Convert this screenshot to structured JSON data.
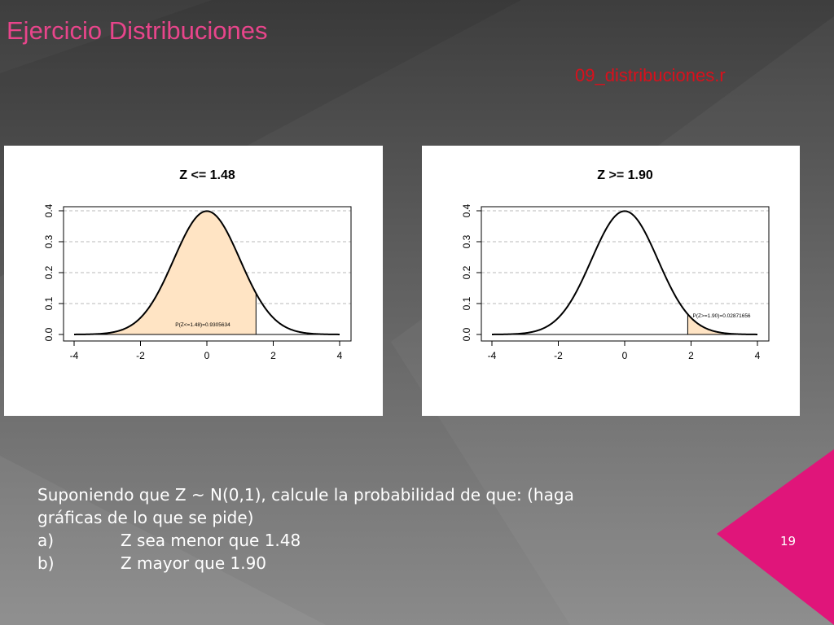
{
  "slide": {
    "title": "Ejercicio Distribuciones",
    "file_link": "09_distribuciones.r",
    "page_number": "19",
    "colors": {
      "title": "#e8458b",
      "file_link": "#d9101c",
      "accent_triangle": "#e0157a",
      "fill": "#ffe4c4"
    },
    "text": {
      "line1": "Suponiendo que Z ~ N(0,1), calcule la probabilidad de que: (haga",
      "line2": "gráficas de lo que se pide)",
      "item_a_label": "a)",
      "item_a_text": "Z sea menor que 1.48",
      "item_b_label": "b)",
      "item_b_text": "Z mayor que 1.90"
    }
  },
  "chart_data": [
    {
      "type": "area",
      "title": "Z <= 1.48",
      "distribution": "normal",
      "mean": 0,
      "sd": 1,
      "xlim": [
        -4,
        4
      ],
      "ylim": [
        0,
        0.4
      ],
      "x_ticks": [
        "-4",
        "-2",
        "0",
        "2",
        "4"
      ],
      "y_ticks": [
        "0.0",
        "0.1",
        "0.2",
        "0.3",
        "0.4"
      ],
      "shaded_range": [
        -4,
        1.48
      ],
      "annotation": "P(Z<=1.48)=0.9305634",
      "grid": "horizontal dashed"
    },
    {
      "type": "area",
      "title": "Z >= 1.90",
      "distribution": "normal",
      "mean": 0,
      "sd": 1,
      "xlim": [
        -4,
        4
      ],
      "ylim": [
        0,
        0.4
      ],
      "x_ticks": [
        "-4",
        "-2",
        "0",
        "2",
        "4"
      ],
      "y_ticks": [
        "0.0",
        "0.1",
        "0.2",
        "0.3",
        "0.4"
      ],
      "shaded_range": [
        1.9,
        4
      ],
      "annotation": "P(Z>=1.90)=0.02871656",
      "grid": "horizontal dashed"
    }
  ]
}
